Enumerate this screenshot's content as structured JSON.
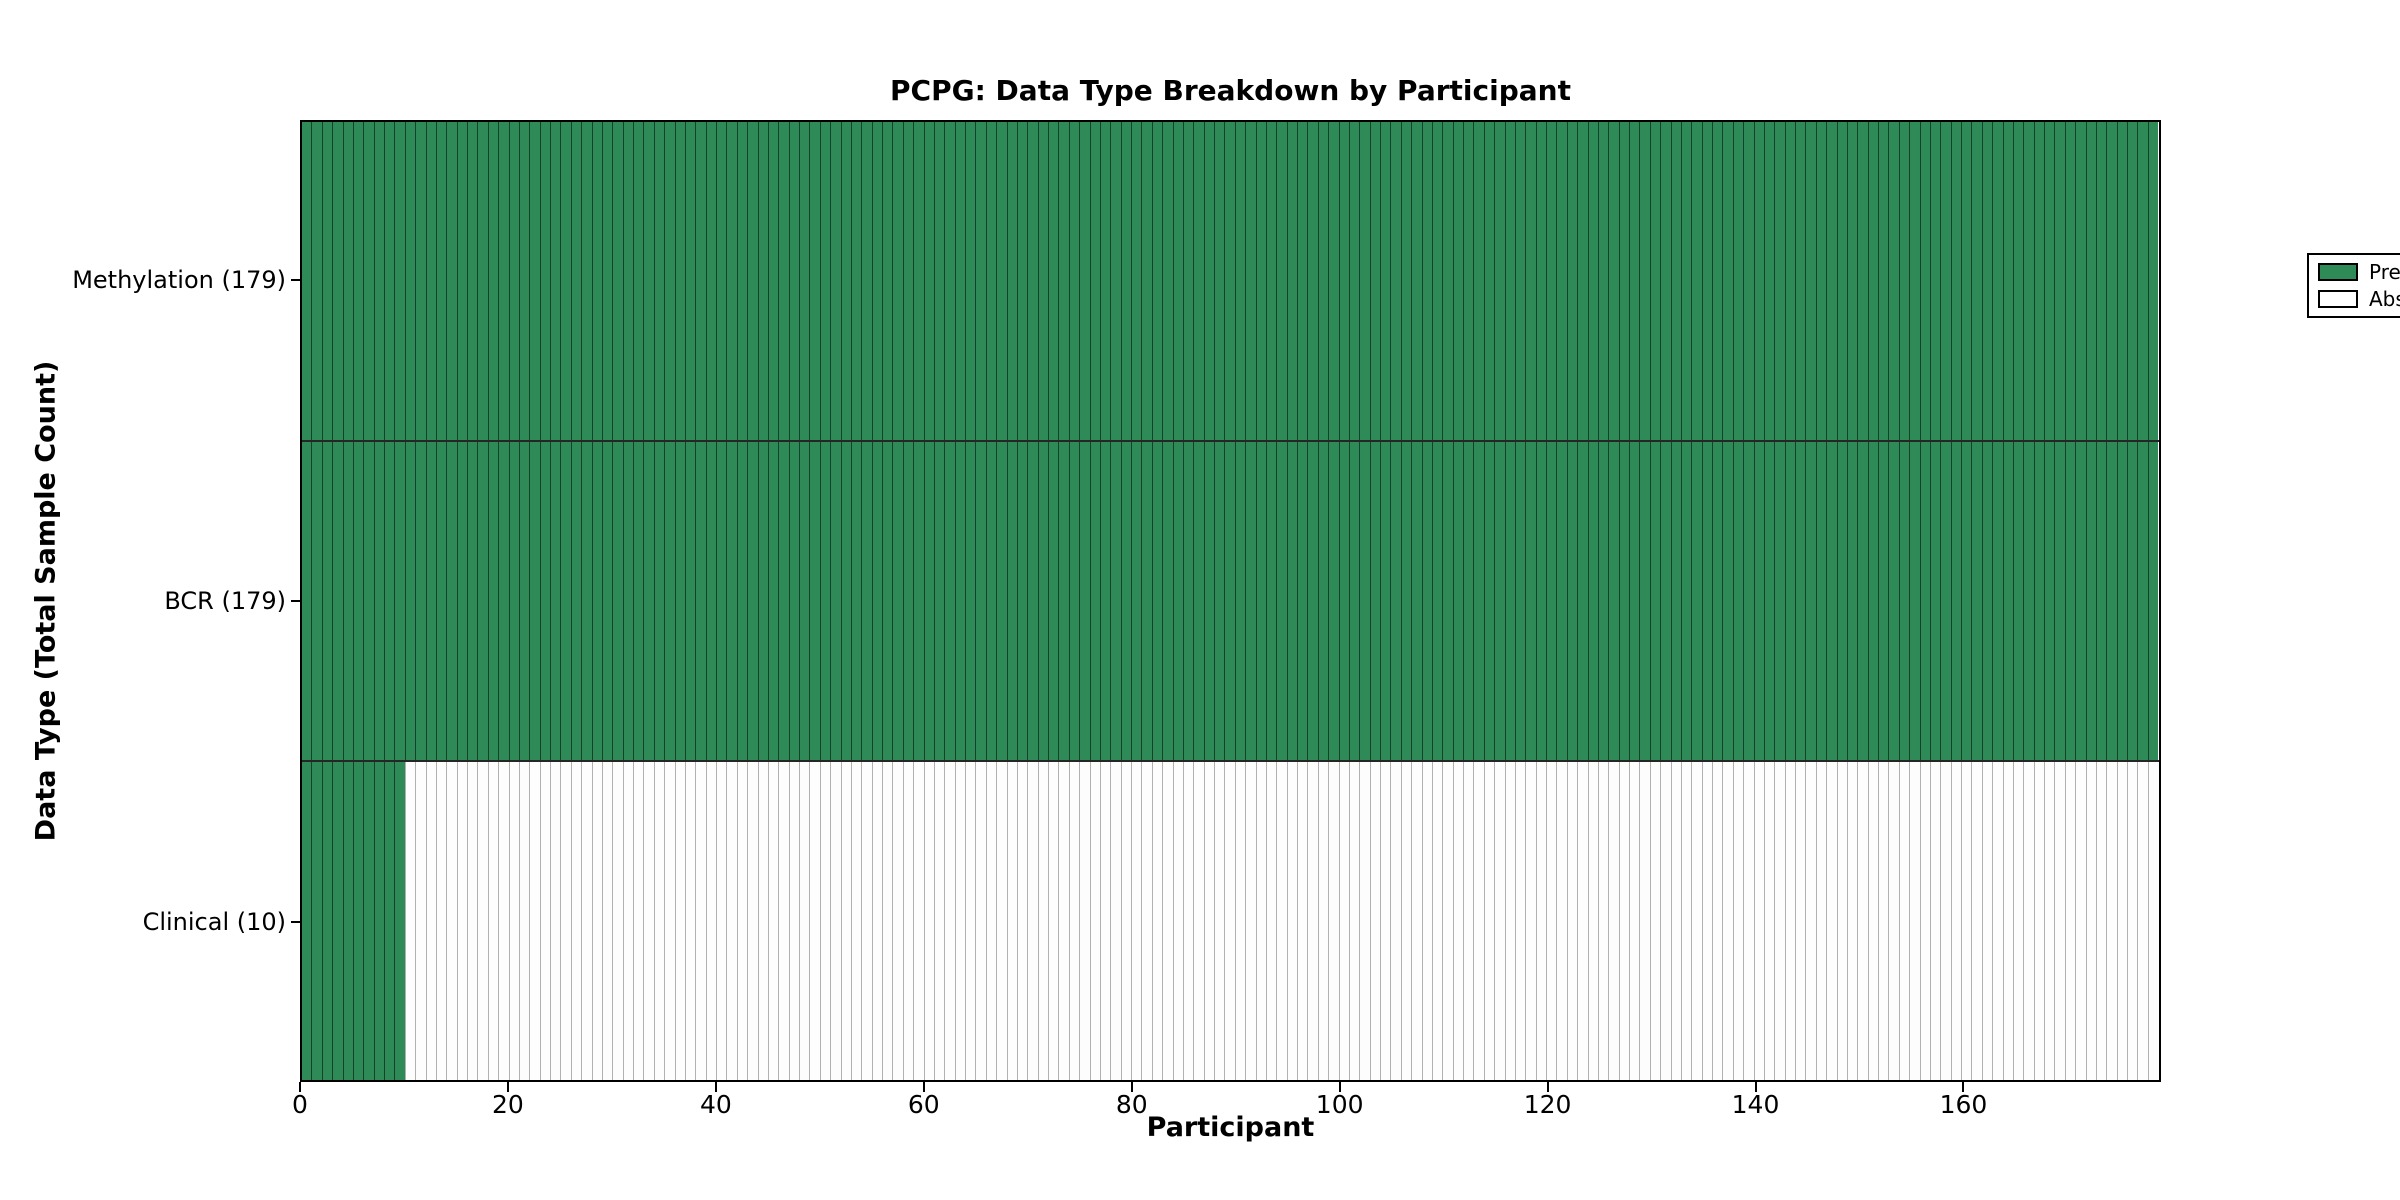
{
  "figure": {
    "title": "PCPG: Data Type Breakdown by Participant",
    "xlabel": "Participant",
    "ylabel": "Data Type (Total Sample Count)"
  },
  "colors": {
    "present": "#2e8b57",
    "absent": "#ffffff",
    "axis": "#000000",
    "absent_cell_edge": "#b0b0b0"
  },
  "chart_data": {
    "type": "heatmap",
    "title": "PCPG: Data Type Breakdown by Participant",
    "xlabel": "Participant",
    "ylabel": "Data Type (Total Sample Count)",
    "n_participants": 179,
    "xlim": [
      0,
      179
    ],
    "x_ticks": [
      0,
      20,
      40,
      60,
      80,
      100,
      120,
      140,
      160
    ],
    "grid": false,
    "rows": [
      {
        "key": "methylation",
        "label": "Methylation (179)",
        "data_type": "Methylation",
        "total_sample_count": 179,
        "present_participants": 179,
        "absent_participants": 0
      },
      {
        "key": "bcr",
        "label": "BCR (179)",
        "data_type": "BCR",
        "total_sample_count": 179,
        "present_participants": 179,
        "absent_participants": 0
      },
      {
        "key": "clinical",
        "label": "Clinical (10)",
        "data_type": "Clinical",
        "total_sample_count": 10,
        "present_participants": 10,
        "absent_participants": 169
      }
    ],
    "legend": {
      "position": "upper right",
      "entries": [
        {
          "label": "Present",
          "color": "#2e8b57"
        },
        {
          "label": "Absent",
          "color": "#ffffff"
        }
      ]
    }
  }
}
